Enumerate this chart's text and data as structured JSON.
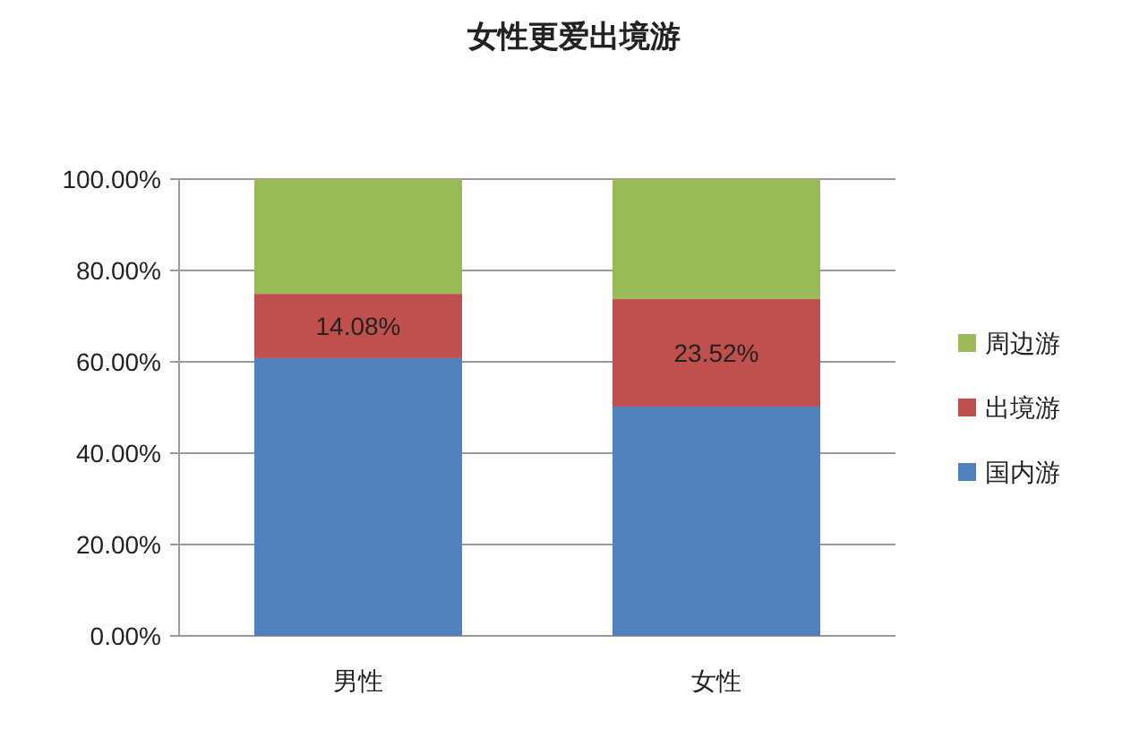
{
  "chart_data": {
    "type": "bar",
    "title": "女性更爱出境游",
    "stacked": true,
    "categories": [
      "男性",
      "女性"
    ],
    "series": [
      {
        "name": "国内游",
        "color": "#4f81bd",
        "values": [
          60.8,
          50.2
        ]
      },
      {
        "name": "出境游",
        "color": "#c0504d",
        "values": [
          14.08,
          23.52
        ],
        "value_labels": [
          "14.08%",
          "23.52%"
        ]
      },
      {
        "name": "周边游",
        "color": "#9bbb59",
        "values": [
          25.12,
          26.28
        ]
      }
    ],
    "ylim": [
      0,
      100
    ],
    "yticks": [
      {
        "value": 0,
        "label": "0.00%"
      },
      {
        "value": 20,
        "label": "20.00%"
      },
      {
        "value": 40,
        "label": "40.00%"
      },
      {
        "value": 60,
        "label": "60.00%"
      },
      {
        "value": 80,
        "label": "80.00%"
      },
      {
        "value": 100,
        "label": "100.00%"
      }
    ],
    "grid": "y",
    "legend": "right"
  }
}
